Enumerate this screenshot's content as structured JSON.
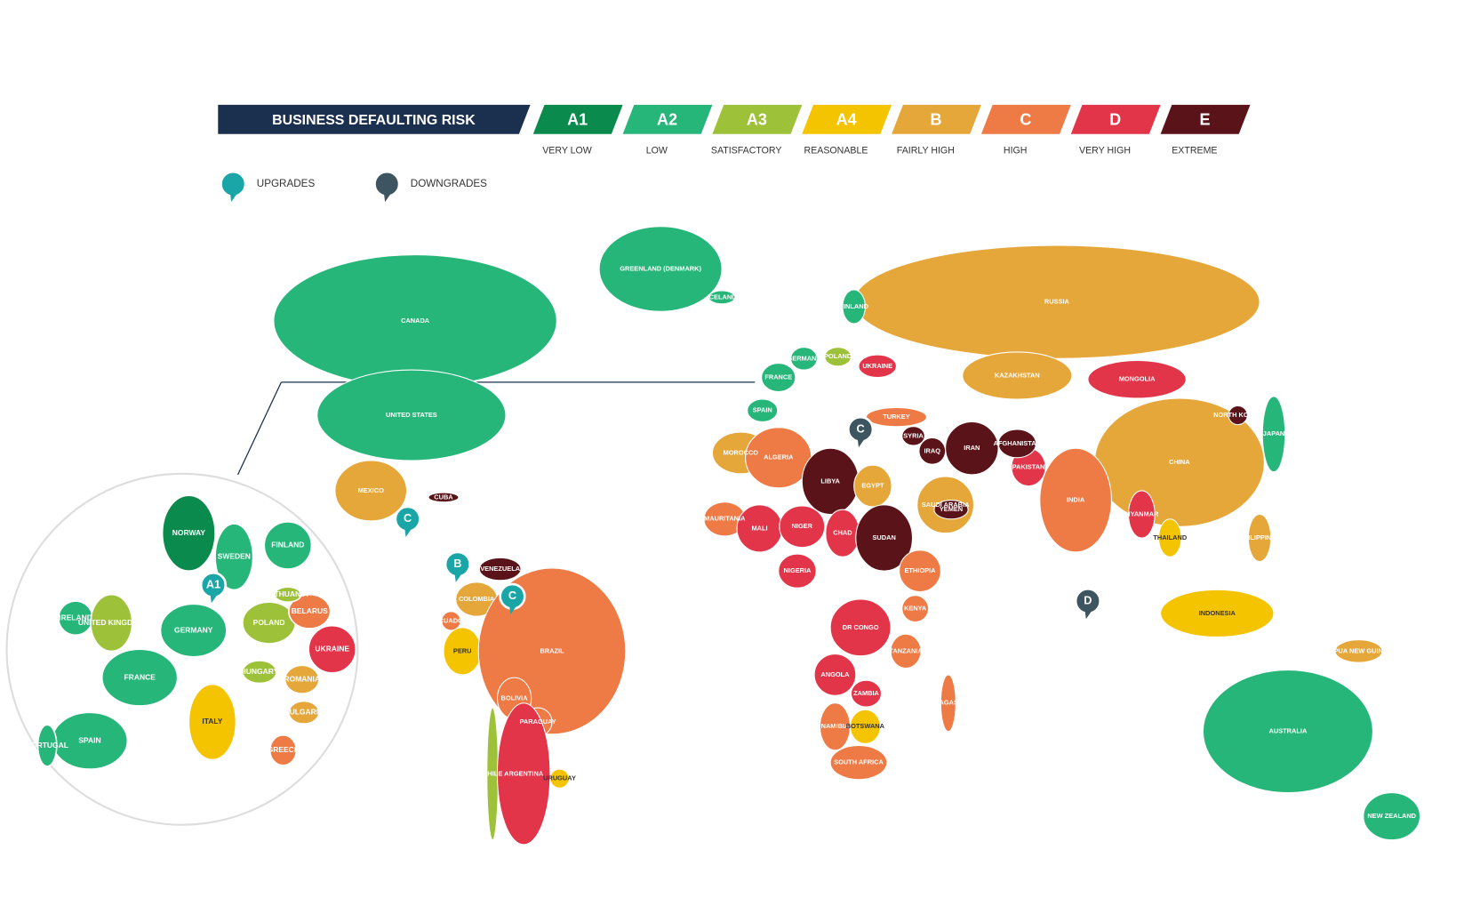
{
  "legend": {
    "title": "BUSINESS DEFAULTING RISK",
    "grades": [
      {
        "code": "A1",
        "label": "VERY LOW",
        "color": "#0b8a4e"
      },
      {
        "code": "A2",
        "label": "LOW",
        "color": "#27b67a"
      },
      {
        "code": "A3",
        "label": "SATISFACTORY",
        "color": "#9dc23a"
      },
      {
        "code": "A4",
        "label": "REASONABLE",
        "color": "#f5c400"
      },
      {
        "code": "B",
        "label": "FAIRLY HIGH",
        "color": "#e6a73a"
      },
      {
        "code": "C",
        "label": "HIGH",
        "color": "#ee7a45"
      },
      {
        "code": "D",
        "label": "VERY HIGH",
        "color": "#e2354a"
      },
      {
        "code": "E",
        "label": "EXTREME",
        "color": "#5a1419"
      }
    ]
  },
  "markers": {
    "upgrades": "UPGRADES",
    "upgrade_color": "#1aa6a6",
    "downgrades": "DOWNGRADES",
    "downgrade_color": "#3d5560"
  },
  "badges": [
    {
      "text": "C",
      "kind": "upgrade"
    },
    {
      "text": "B",
      "kind": "upgrade"
    },
    {
      "text": "C",
      "kind": "upgrade"
    },
    {
      "text": "A1",
      "kind": "upgrade"
    },
    {
      "text": "C",
      "kind": "downgrade"
    },
    {
      "text": "D",
      "kind": "downgrade"
    }
  ],
  "countries": [
    {
      "label": "CANADA",
      "grade": "A2"
    },
    {
      "label": "UNITED STATES",
      "grade": "A2"
    },
    {
      "label": "GREENLAND (DENMARK)",
      "grade": "A2"
    },
    {
      "label": "ICELAND",
      "grade": "A2"
    },
    {
      "label": "MEXICO",
      "grade": "B"
    },
    {
      "label": "CUBA",
      "grade": "E"
    },
    {
      "label": "VENEZUELA",
      "grade": "E"
    },
    {
      "label": "COLOMBIA",
      "grade": "B"
    },
    {
      "label": "ECUADOR",
      "grade": "C"
    },
    {
      "label": "PERU",
      "grade": "A4"
    },
    {
      "label": "BRAZIL",
      "grade": "C"
    },
    {
      "label": "BOLIVIA",
      "grade": "C"
    },
    {
      "label": "PARAGUAY",
      "grade": "C"
    },
    {
      "label": "CHILE",
      "grade": "A3"
    },
    {
      "label": "ARGENTINA",
      "grade": "D"
    },
    {
      "label": "URUGUAY",
      "grade": "A4"
    },
    {
      "label": "RUSSIA",
      "grade": "B"
    },
    {
      "label": "KAZAKHSTAN",
      "grade": "B"
    },
    {
      "label": "MONGOLIA",
      "grade": "D"
    },
    {
      "label": "CHINA",
      "grade": "B"
    },
    {
      "label": "JAPAN",
      "grade": "A2"
    },
    {
      "label": "INDIA",
      "grade": "C"
    },
    {
      "label": "PAKISTAN",
      "grade": "D"
    },
    {
      "label": "AFGHANISTAN",
      "grade": "E"
    },
    {
      "label": "IRAN",
      "grade": "E"
    },
    {
      "label": "IRAQ",
      "grade": "E"
    },
    {
      "label": "SYRIA",
      "grade": "E"
    },
    {
      "label": "TURKEY",
      "grade": "C"
    },
    {
      "label": "SAUDI ARABIA",
      "grade": "B"
    },
    {
      "label": "YEMEN",
      "grade": "E"
    },
    {
      "label": "MOROCCO",
      "grade": "B"
    },
    {
      "label": "ALGERIA",
      "grade": "C"
    },
    {
      "label": "LIBYA",
      "grade": "E"
    },
    {
      "label": "EGYPT",
      "grade": "B"
    },
    {
      "label": "MAURITANIA",
      "grade": "C"
    },
    {
      "label": "MALI",
      "grade": "D"
    },
    {
      "label": "NIGER",
      "grade": "D"
    },
    {
      "label": "CHAD",
      "grade": "D"
    },
    {
      "label": "SUDAN",
      "grade": "E"
    },
    {
      "label": "ETHIOPIA",
      "grade": "C"
    },
    {
      "label": "NIGERIA",
      "grade": "D"
    },
    {
      "label": "DR CONGO",
      "grade": "D"
    },
    {
      "label": "ANGOLA",
      "grade": "D"
    },
    {
      "label": "ZAMBIA",
      "grade": "D"
    },
    {
      "label": "TANZANIA",
      "grade": "C"
    },
    {
      "label": "KENYA",
      "grade": "C"
    },
    {
      "label": "NAMIBIA",
      "grade": "C"
    },
    {
      "label": "BOTSWANA",
      "grade": "A4"
    },
    {
      "label": "SOUTH AFRICA",
      "grade": "C"
    },
    {
      "label": "MADAGASCAR",
      "grade": "C"
    },
    {
      "label": "MYANMAR",
      "grade": "D"
    },
    {
      "label": "THAILAND",
      "grade": "A4"
    },
    {
      "label": "INDONESIA",
      "grade": "A4"
    },
    {
      "label": "PHILIPPINES",
      "grade": "B"
    },
    {
      "label": "PAPUA NEW GUINEA",
      "grade": "B"
    },
    {
      "label": "AUSTRALIA",
      "grade": "A2"
    },
    {
      "label": "NEW ZEALAND",
      "grade": "A2"
    },
    {
      "label": "NORTH KOREA",
      "grade": "E"
    },
    {
      "label": "FRANCE",
      "grade": "A2"
    },
    {
      "label": "SPAIN",
      "grade": "A2"
    },
    {
      "label": "GERMANY",
      "grade": "A2"
    },
    {
      "label": "POLAND",
      "grade": "A3"
    },
    {
      "label": "UKRAINE",
      "grade": "D"
    },
    {
      "label": "FINLAND",
      "grade": "A2"
    }
  ],
  "inset_countries": [
    {
      "label": "NORWAY",
      "grade": "A1"
    },
    {
      "label": "SWEDEN",
      "grade": "A2"
    },
    {
      "label": "FINLAND",
      "grade": "A2"
    },
    {
      "label": "IRELAND",
      "grade": "A2"
    },
    {
      "label": "UNITED KINGDOM",
      "grade": "A3"
    },
    {
      "label": "GERMANY",
      "grade": "A2"
    },
    {
      "label": "POLAND",
      "grade": "A3"
    },
    {
      "label": "BELARUS",
      "grade": "C"
    },
    {
      "label": "UKRAINE",
      "grade": "D"
    },
    {
      "label": "FRANCE",
      "grade": "A2"
    },
    {
      "label": "SPAIN",
      "grade": "A2"
    },
    {
      "label": "PORTUGAL",
      "grade": "A2"
    },
    {
      "label": "ITALY",
      "grade": "A4"
    },
    {
      "label": "HUNGARY",
      "grade": "A3"
    },
    {
      "label": "ROMANIA",
      "grade": "B"
    },
    {
      "label": "BULGARIA",
      "grade": "B"
    },
    {
      "label": "GREECE",
      "grade": "C"
    },
    {
      "label": "LITHUANIA",
      "grade": "A3"
    }
  ]
}
